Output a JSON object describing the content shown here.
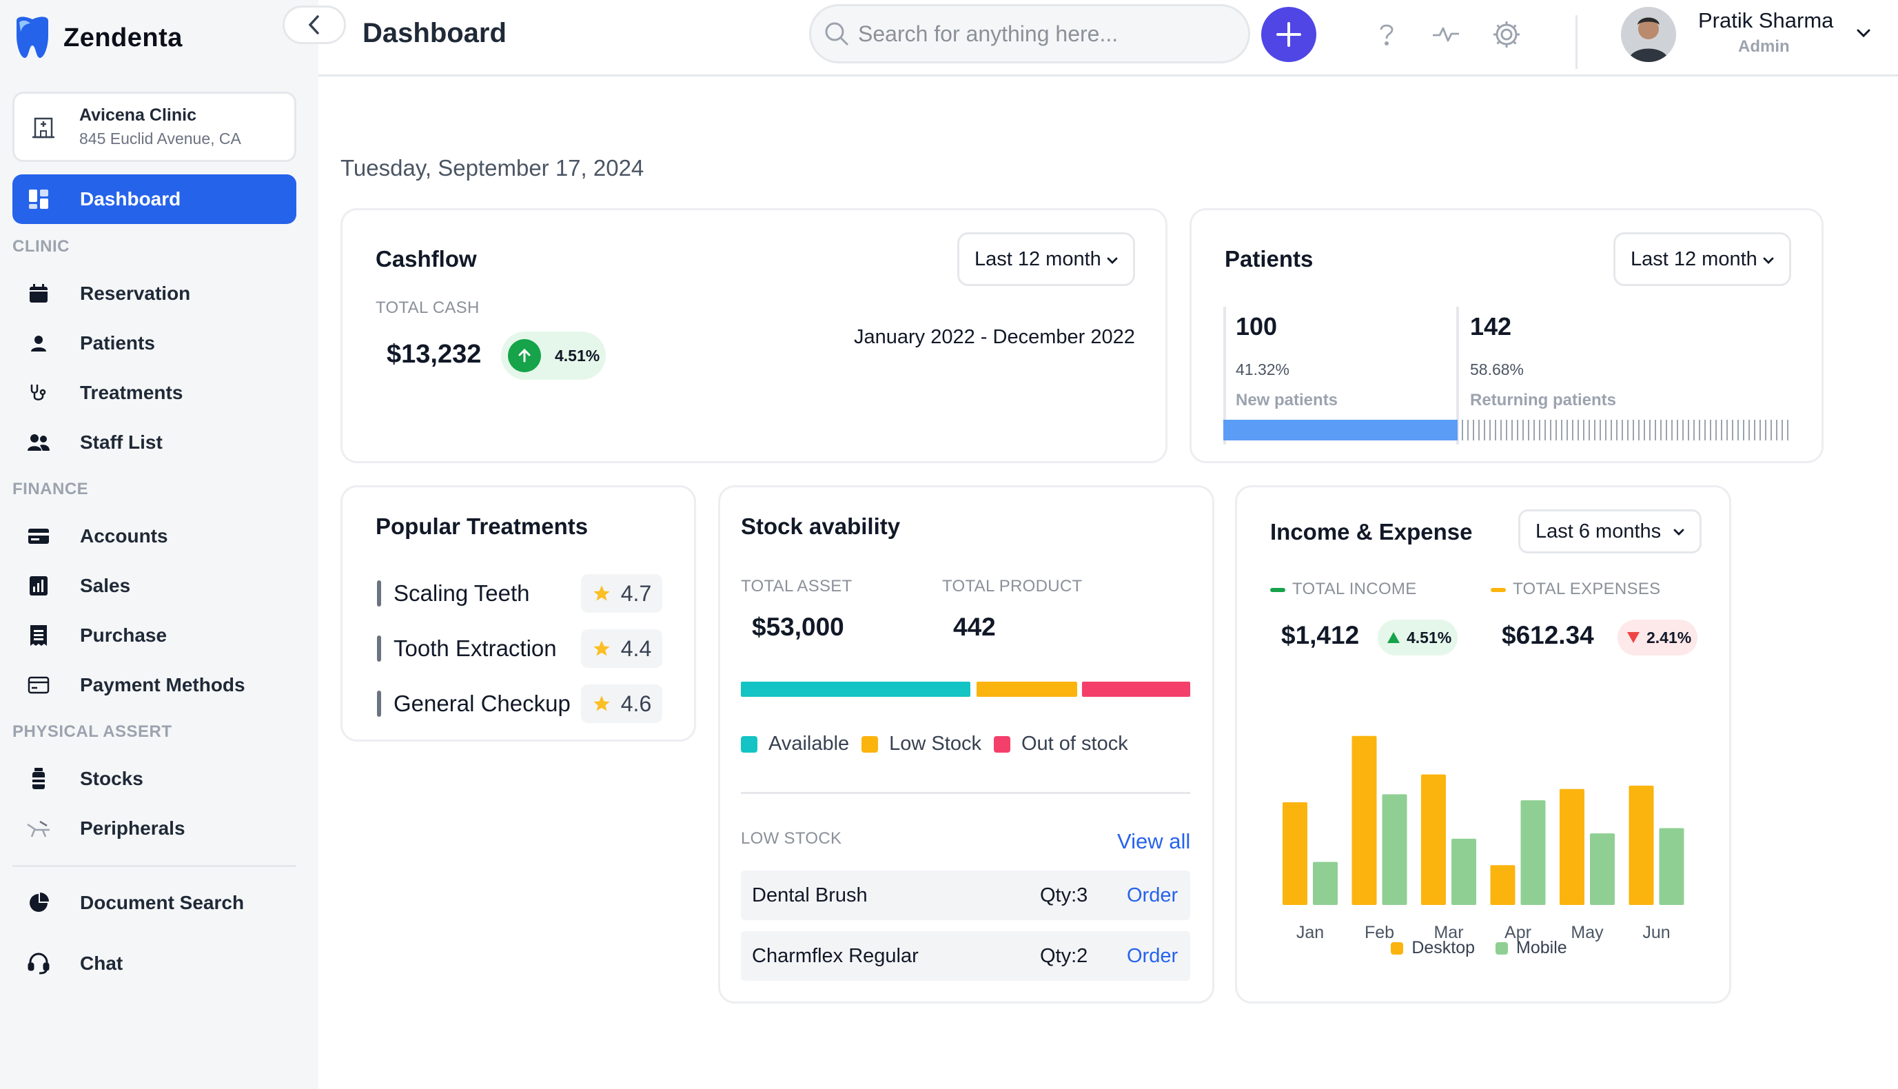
{
  "app": {
    "name": "Zendenta"
  },
  "clinic": {
    "name": "Avicena Clinic",
    "address": "845 Euclid Avenue, CA"
  },
  "sidebar": {
    "active": "Dashboard",
    "sections": {
      "clinic": "CLINIC",
      "finance": "FINANCE",
      "physical": "PHYSICAL ASSERT"
    },
    "items": {
      "reservation": "Reservation",
      "patients": "Patients",
      "treatments": "Treatments",
      "staff": "Staff List",
      "accounts": "Accounts",
      "sales": "Sales",
      "purchase": "Purchase",
      "payment": "Payment Methods",
      "stocks": "Stocks",
      "peripherals": "Peripherals",
      "document_search": "Document Search",
      "chat": "Chat"
    }
  },
  "header": {
    "title": "Dashboard",
    "search_placeholder": "Search for anything here...",
    "user_name": "Pratik Sharma",
    "user_role": "Admin"
  },
  "date": "Tuesday, September 17, 2024",
  "cashflow": {
    "title": "Cashflow",
    "period": "Last 12 month",
    "total_label": "TOTAL CASH",
    "total_value": "$13,232",
    "change": "4.51%",
    "range": "January 2022 - December 2022"
  },
  "patients": {
    "title": "Patients",
    "period": "Last 12 month",
    "new_count": "100",
    "new_pct": "41.32%",
    "new_label": "New patients",
    "returning_count": "142",
    "returning_pct": "58.68%",
    "returning_label": "Returning patients",
    "new_share": 0.4132
  },
  "treatments": {
    "title": "Popular Treatments",
    "items": [
      {
        "name": "Scaling Teeth",
        "rating": "4.7"
      },
      {
        "name": "Tooth Extraction",
        "rating": "4.4"
      },
      {
        "name": "General Checkup",
        "rating": "4.6"
      }
    ]
  },
  "stock": {
    "title": "Stock avability",
    "asset_label": "TOTAL ASSET",
    "asset_value": "$53,000",
    "product_label": "TOTAL PRODUCT",
    "product_value": "442",
    "legend": {
      "available": "Available",
      "low": "Low Stock",
      "out": "Out of stock"
    },
    "low_label": "LOW STOCK",
    "view_all": "View all",
    "rows": [
      {
        "name": "Dental Brush",
        "qty": "Qty:3",
        "action": "Order"
      },
      {
        "name": "Charmflex Regular",
        "qty": "Qty:2",
        "action": "Order"
      }
    ]
  },
  "income": {
    "title": "Income & Expense",
    "period": "Last 6 months",
    "income_label": "TOTAL INCOME",
    "income_value": "$1,412",
    "income_change": "4.51%",
    "expense_label": "TOTAL EXPENSES",
    "expense_value": "$612.34",
    "expense_change": "2.41%"
  },
  "colors": {
    "primary": "#2563eb",
    "available": "#14c4c4",
    "low_stock": "#fbb40e",
    "out_of_stock": "#f43f6b",
    "desktop": "#fbb40e",
    "mobile": "#8fcf93"
  },
  "chart_data": {
    "type": "bar",
    "categories": [
      "Jan",
      "Feb",
      "Mar",
      "Apr",
      "May",
      "Jun"
    ],
    "series": [
      {
        "name": "Desktop",
        "values": [
          155,
          255,
          197,
          60,
          175,
          180
        ]
      },
      {
        "name": "Mobile",
        "values": [
          65,
          167,
          100,
          158,
          108,
          116
        ]
      }
    ],
    "ylim": [
      0,
      260
    ],
    "legend": "bottom"
  }
}
